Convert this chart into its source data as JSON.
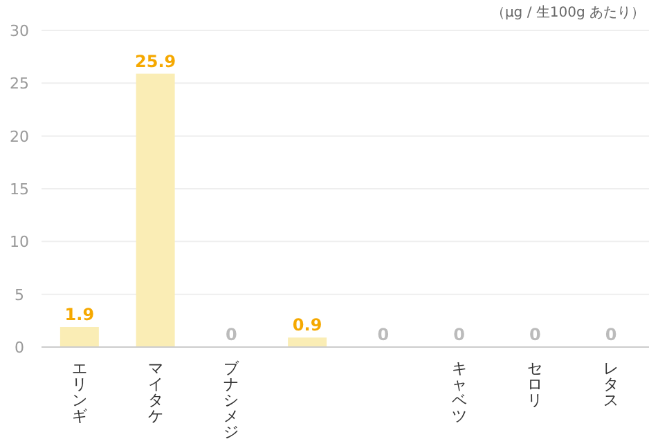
{
  "chart_data": {
    "type": "bar",
    "annotations": [
      "（μg / 生100g あたり）"
    ],
    "categories": [
      "エリンギ",
      "マイタケ",
      "ブナシメジ",
      null,
      null,
      "キャベツ",
      "セロリ",
      "レタス"
    ],
    "values": [
      1.9,
      25.9,
      0,
      0.9,
      0,
      0,
      0,
      0
    ],
    "color": "#faedb5",
    "ylim": [
      0,
      30
    ],
    "yticks": [
      0,
      5,
      10,
      15,
      20,
      25,
      30
    ],
    "grid": "y",
    "data_labels": true
  }
}
